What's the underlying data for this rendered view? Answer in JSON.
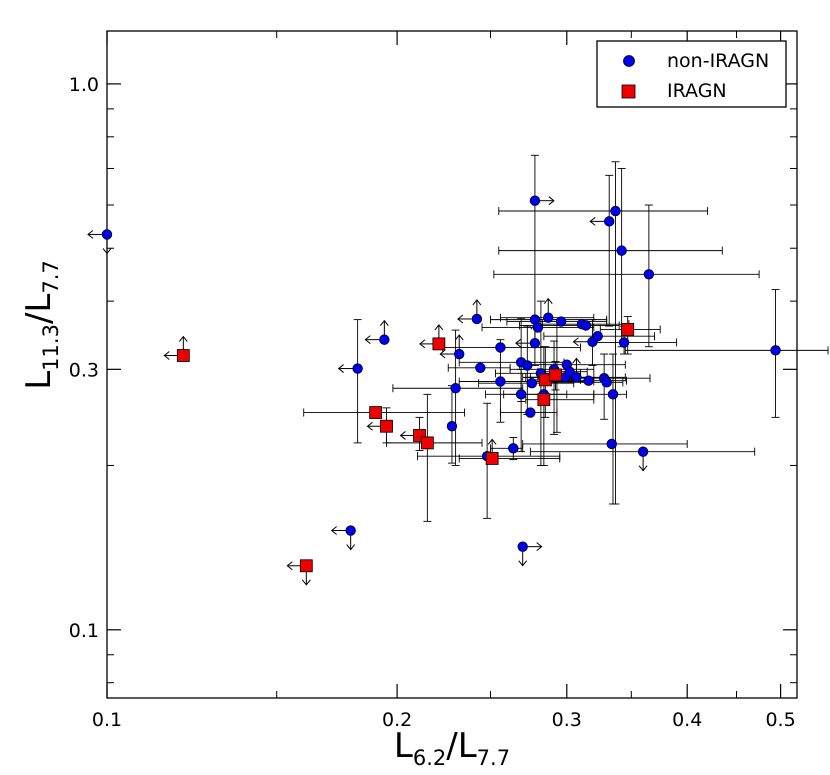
{
  "chart_data": {
    "type": "scatter",
    "title": "",
    "xlabel": {
      "base": "L",
      "sub1": "6.2",
      "sep": "/L",
      "sub2": "7.7"
    },
    "ylabel": {
      "base": "L",
      "sub1": "11.3",
      "sep": "/L",
      "sub2": "7.7"
    },
    "xscale": "log",
    "yscale": "log",
    "xlim": [
      0.1,
      0.52
    ],
    "ylim": [
      0.075,
      1.25
    ],
    "x_ticks": [
      {
        "value": 0.1,
        "label": "0.1"
      },
      {
        "value": 0.2,
        "label": "0.2"
      },
      {
        "value": 0.3,
        "label": "0.3"
      },
      {
        "value": 0.4,
        "label": "0.4"
      },
      {
        "value": 0.5,
        "label": "0.5"
      }
    ],
    "x_minor_ticks": [
      0.15,
      0.25,
      0.35,
      0.45
    ],
    "y_ticks": [
      {
        "value": 0.1,
        "label": "0.1"
      },
      {
        "value": 0.3,
        "label": "0.3"
      },
      {
        "value": 1.0,
        "label": "1.0"
      }
    ],
    "y_minor_ticks": [
      0.08,
      0.09,
      0.2,
      0.4,
      0.5,
      0.6,
      0.7,
      0.8,
      0.9
    ],
    "legend": {
      "position": "top-right",
      "entries": [
        {
          "label": "non-IRAGN",
          "marker": "circle",
          "color": "#0000ee"
        },
        {
          "label": "IRAGN",
          "marker": "square",
          "color": "#ee0000"
        }
      ]
    },
    "series": [
      {
        "name": "non-IRAGN",
        "marker": "circle",
        "color": "#0000ee",
        "points": [
          {
            "x": 0.1,
            "y": 0.53,
            "limit_x": "upper",
            "limit_y": "upper"
          },
          {
            "x": 0.182,
            "y": 0.301,
            "limit_x": "upper",
            "yerr": [
              0.22,
              0.37
            ]
          },
          {
            "x": 0.194,
            "y": 0.34,
            "limit_x": "upper",
            "limit_y": "lower"
          },
          {
            "x": 0.179,
            "y": 0.152,
            "limit_x": "upper",
            "limit_y": "upper"
          },
          {
            "x": 0.228,
            "y": 0.236,
            "yerr": [
              0.202,
              0.28
            ]
          },
          {
            "x": 0.23,
            "y": 0.277,
            "xerr": [
              0.198,
              0.27
            ],
            "yerr": [
              0.2,
              0.354
            ]
          },
          {
            "x": 0.232,
            "y": 0.32,
            "limit_x": "upper",
            "limit_y": "lower"
          },
          {
            "x": 0.244,
            "y": 0.302,
            "xerr": [
              0.226,
              0.262
            ]
          },
          {
            "x": 0.242,
            "y": 0.371,
            "limit_x": "upper",
            "limit_y": "lower"
          },
          {
            "x": 0.248,
            "y": 0.208,
            "xerr": [
              0.21,
              0.295
            ],
            "yerr": [
              0.16,
              0.26
            ]
          },
          {
            "x": 0.256,
            "y": 0.285,
            "xerr": [
              0.232,
              0.32
            ],
            "yerr": [
              0.24,
              0.34
            ]
          },
          {
            "x": 0.256,
            "y": 0.329,
            "xerr": [
              0.223,
              0.31
            ]
          },
          {
            "x": 0.264,
            "y": 0.215,
            "xerr": [
              0.25,
              0.27
            ],
            "yerr": [
              0.205,
              0.225
            ]
          },
          {
            "x": 0.269,
            "y": 0.27,
            "xerr": [
              0.247,
              0.3
            ],
            "yerr": [
              0.212,
              0.3
            ]
          },
          {
            "x": 0.269,
            "y": 0.309,
            "xerr": [
              0.232,
              0.298
            ],
            "yerr": [
              0.262,
              0.372
            ]
          },
          {
            "x": 0.27,
            "y": 0.142,
            "limit_x": "lower",
            "limit_y": "upper"
          },
          {
            "x": 0.273,
            "y": 0.305,
            "yerr": [
              0.248,
              0.36
            ]
          },
          {
            "x": 0.275,
            "y": 0.25,
            "xerr": [
              0.256,
              0.293
            ]
          },
          {
            "x": 0.276,
            "y": 0.283,
            "xerr": [
              0.243,
              0.305
            ]
          },
          {
            "x": 0.278,
            "y": 0.611,
            "limit_x": "lower"
          },
          {
            "x": 0.278,
            "y": 0.335,
            "limit_x": "upper",
            "limit_y": "lower"
          },
          {
            "x": 0.278,
            "y": 0.37,
            "xerr": [
              0.25,
              0.33
            ],
            "yerr": [
              0.305,
              0.74
            ]
          },
          {
            "x": 0.28,
            "y": 0.358,
            "xerr": [
              0.245,
              0.32
            ]
          },
          {
            "x": 0.282,
            "y": 0.295,
            "xerr": [
              0.253,
              0.31
            ],
            "yerr": [
              0.2,
              0.4
            ]
          },
          {
            "x": 0.284,
            "y": 0.27,
            "xerr": [
              0.258,
              0.32
            ]
          },
          {
            "x": 0.287,
            "y": 0.373,
            "xerr": [
              0.256,
              0.32
            ],
            "limit_y": "lower"
          },
          {
            "x": 0.291,
            "y": 0.3,
            "xerr": [
              0.262,
              0.32
            ],
            "yerr": [
              0.228,
              0.338
            ]
          },
          {
            "x": 0.293,
            "y": 0.29,
            "xerr": [
              0.27,
              0.303
            ],
            "yerr": [
              0.23,
              0.37
            ]
          },
          {
            "x": 0.296,
            "y": 0.367,
            "xerr": [
              0.26,
              0.33
            ]
          },
          {
            "x": 0.299,
            "y": 0.29,
            "xerr": [
              0.275,
              0.32
            ]
          },
          {
            "x": 0.3,
            "y": 0.306,
            "xerr": [
              0.268,
              0.345
            ]
          },
          {
            "x": 0.302,
            "y": 0.297,
            "xerr": [
              0.28,
              0.315
            ]
          },
          {
            "x": 0.307,
            "y": 0.29,
            "xerr": [
              0.272,
              0.345
            ],
            "limit_y": "lower"
          },
          {
            "x": 0.311,
            "y": 0.363,
            "xerr": [
              0.283,
              0.348
            ]
          },
          {
            "x": 0.314,
            "y": 0.361,
            "xerr": [
              0.268,
              0.34
            ]
          },
          {
            "x": 0.316,
            "y": 0.286,
            "xerr": [
              0.286,
              0.346
            ]
          },
          {
            "x": 0.319,
            "y": 0.337,
            "limit_x": "upper",
            "yerr": [
              0.305,
              0.37
            ]
          },
          {
            "x": 0.323,
            "y": 0.345,
            "xerr": [
              0.284,
              0.37
            ]
          },
          {
            "x": 0.328,
            "y": 0.289,
            "xerr": [
              0.28,
              0.366
            ],
            "yerr": [
              0.243,
              0.32
            ]
          },
          {
            "x": 0.33,
            "y": 0.284,
            "xerr": [
              0.289,
              0.343
            ]
          },
          {
            "x": 0.332,
            "y": 0.56,
            "limit_x": "upper",
            "yerr": [
              0.36,
              0.68
            ]
          },
          {
            "x": 0.334,
            "y": 0.219,
            "xerr": [
              0.27,
              0.4
            ]
          },
          {
            "x": 0.335,
            "y": 0.27,
            "xerr": [
              0.32,
              0.346
            ],
            "yerr": [
              0.17,
              0.32
            ]
          },
          {
            "x": 0.337,
            "y": 0.585,
            "xerr": [
              0.255,
              0.42
            ],
            "yerr": [
              0.17,
              0.72
            ]
          },
          {
            "x": 0.342,
            "y": 0.495,
            "xerr": [
              0.255,
              0.435
            ],
            "yerr": [
              0.33,
              0.7
            ]
          },
          {
            "x": 0.344,
            "y": 0.336,
            "xerr": [
              0.32,
              0.39
            ],
            "yerr": [
              0.32,
              0.36
            ]
          },
          {
            "x": 0.36,
            "y": 0.212,
            "xerr": [
              0.275,
              0.47
            ],
            "limit_y": "upper"
          },
          {
            "x": 0.365,
            "y": 0.448,
            "xerr": [
              0.252,
              0.475
            ],
            "yerr": [
              0.33,
              0.6
            ]
          },
          {
            "x": 0.494,
            "y": 0.325,
            "xerr": [
              0.345,
              0.56
            ],
            "yerr": [
              0.245,
              0.42
            ]
          }
        ]
      },
      {
        "name": "IRAGN",
        "marker": "square",
        "color": "#ee0000",
        "points": [
          {
            "x": 0.12,
            "y": 0.318,
            "limit_x": "upper",
            "limit_y": "lower"
          },
          {
            "x": 0.161,
            "y": 0.131,
            "limit_x": "upper",
            "limit_y": "upper"
          },
          {
            "x": 0.19,
            "y": 0.25,
            "xerr": [
              0.16,
              0.235
            ]
          },
          {
            "x": 0.195,
            "y": 0.236,
            "limit_x": "upper",
            "yerr": [
              0.22,
              0.255
            ]
          },
          {
            "x": 0.211,
            "y": 0.227,
            "limit_x": "upper",
            "yerr": [
              0.213,
              0.245
            ]
          },
          {
            "x": 0.215,
            "y": 0.22,
            "xerr": [
              0.195,
              0.245
            ],
            "yerr": [
              0.158,
              0.27
            ]
          },
          {
            "x": 0.221,
            "y": 0.334,
            "limit_x": "upper",
            "limit_y": "lower"
          },
          {
            "x": 0.251,
            "y": 0.206,
            "xerr": [
              0.232,
              0.295
            ],
            "limit_y": "lower"
          },
          {
            "x": 0.284,
            "y": 0.264,
            "xerr": [
              0.272,
              0.32
            ],
            "yerr": [
              0.2,
              0.33
            ]
          },
          {
            "x": 0.285,
            "y": 0.287,
            "xerr": [
              0.275,
              0.31
            ],
            "yerr": [
              0.245,
              0.33
            ]
          },
          {
            "x": 0.292,
            "y": 0.293,
            "limit_x": "upper",
            "yerr": [
              0.275,
              0.31
            ]
          },
          {
            "x": 0.347,
            "y": 0.355,
            "xerr": [
              0.325,
              0.375
            ],
            "yerr": [
              0.32,
              0.375
            ]
          }
        ]
      }
    ]
  }
}
